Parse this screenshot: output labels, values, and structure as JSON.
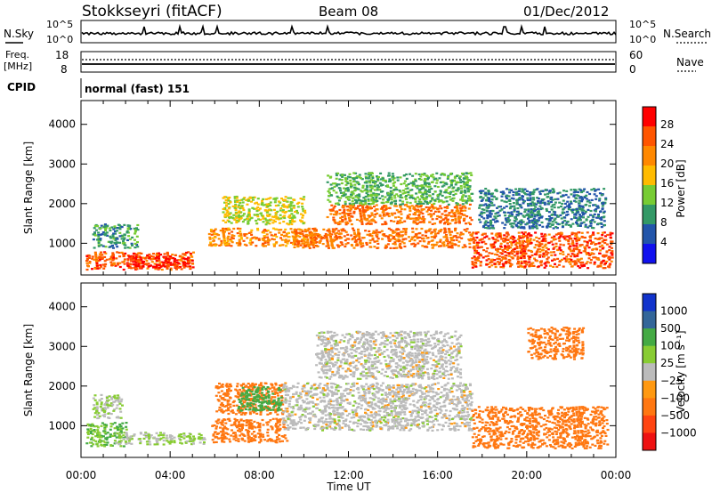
{
  "header": {
    "station": "Stokkseyri (fitACF)",
    "beam": "Beam 08",
    "date": "01/Dec/2012"
  },
  "summary_panels": {
    "nsky_label": "N.Sky",
    "nsky_ticks": [
      "10^5",
      "10^0"
    ],
    "nsearch_label": "N.Search",
    "nsearch_ticks": [
      "10^5",
      "10^0"
    ],
    "freq_label": "Freq.",
    "freq_unit": "[MHz]",
    "freq_ticks": [
      "18",
      "8"
    ],
    "nave_label": "Nave",
    "nave_ticks": [
      "60",
      "0"
    ],
    "cpid_label": "CPID",
    "cpid_value": "normal (fast) 151"
  },
  "power_colorbar": {
    "label": "Power [dB]",
    "ticks": [
      "28",
      "24",
      "20",
      "16",
      "12",
      "8",
      "4"
    ],
    "colors": [
      "#ff0000",
      "#ff5500",
      "#ff8800",
      "#ffbb00",
      "#77cc33",
      "#339966",
      "#2255aa",
      "#1111ee"
    ]
  },
  "velocity_colorbar": {
    "label": "Velocity [m s⁻¹]",
    "ticks": [
      "1000",
      "500",
      "100",
      "25",
      "−25",
      "−100",
      "−500",
      "−1000"
    ],
    "colors": [
      "#1133cc",
      "#336699",
      "#44aa44",
      "#88cc33",
      "#bbbbbb",
      "#ff9911",
      "#ff7711",
      "#ff4411",
      "#ee1111"
    ]
  },
  "chart_data": [
    {
      "type": "heatmap",
      "quantity": "power",
      "ylabel": "Slant Range [km]",
      "xlabel": "",
      "x_ticks": [
        "00:00",
        "04:00",
        "08:00",
        "12:00",
        "16:00",
        "20:00",
        "00:00"
      ],
      "y_ticks": [
        1000,
        2000,
        3000,
        4000
      ],
      "xlim_hours": [
        0,
        24
      ],
      "ylim": [
        200,
        4600
      ],
      "echo_regions": [
        {
          "t0": 0.2,
          "t1": 5.0,
          "r0": 350,
          "r1": 800,
          "level": 26
        },
        {
          "t0": 2.0,
          "t1": 4.8,
          "r0": 400,
          "r1": 700,
          "level": 30
        },
        {
          "t0": 0.5,
          "t1": 2.5,
          "r0": 900,
          "r1": 1500,
          "level": 10
        },
        {
          "t0": 5.7,
          "t1": 10.5,
          "r0": 950,
          "r1": 1400,
          "level": 22
        },
        {
          "t0": 6.3,
          "t1": 10.0,
          "r0": 1500,
          "r1": 2200,
          "level": 16
        },
        {
          "t0": 9.5,
          "t1": 17.5,
          "r0": 900,
          "r1": 1400,
          "level": 24
        },
        {
          "t0": 11.0,
          "t1": 17.5,
          "r0": 1500,
          "r1": 2000,
          "level": 24
        },
        {
          "t0": 11.0,
          "t1": 17.5,
          "r0": 2000,
          "r1": 2800,
          "level": 12
        },
        {
          "t0": 17.5,
          "t1": 23.8,
          "r0": 400,
          "r1": 1300,
          "level": 26
        },
        {
          "t0": 17.8,
          "t1": 23.5,
          "r0": 1400,
          "r1": 2400,
          "level": 8
        }
      ]
    },
    {
      "type": "heatmap",
      "quantity": "velocity",
      "ylabel": "Slant Range [km]",
      "xlabel": "Time UT",
      "x_ticks": [
        "00:00",
        "04:00",
        "08:00",
        "12:00",
        "16:00",
        "20:00",
        "00:00"
      ],
      "y_ticks": [
        1000,
        2000,
        3000,
        4000
      ],
      "xlim_hours": [
        0,
        24
      ],
      "ylim": [
        200,
        4600
      ],
      "echo_regions": [
        {
          "t0": 0.2,
          "t1": 2.0,
          "r0": 500,
          "r1": 1100,
          "level": 100
        },
        {
          "t0": 1.5,
          "t1": 5.5,
          "r0": 550,
          "r1": 850,
          "level": 25
        },
        {
          "t0": 0.5,
          "t1": 1.8,
          "r0": 1200,
          "r1": 1800,
          "level": 25
        },
        {
          "t0": 5.8,
          "t1": 9.2,
          "r0": 600,
          "r1": 1200,
          "level": -300
        },
        {
          "t0": 6.0,
          "t1": 9.0,
          "r0": 1300,
          "r1": 2100,
          "level": -150
        },
        {
          "t0": 7.0,
          "t1": 9.0,
          "r0": 1400,
          "r1": 2000,
          "level": 150
        },
        {
          "t0": 9.0,
          "t1": 17.5,
          "r0": 900,
          "r1": 2100,
          "level": 0
        },
        {
          "t0": 10.5,
          "t1": 17.0,
          "r0": 2200,
          "r1": 3400,
          "level": 0
        },
        {
          "t0": 17.5,
          "t1": 23.6,
          "r0": 450,
          "r1": 1500,
          "level": -400
        },
        {
          "t0": 20.0,
          "t1": 22.5,
          "r0": 2700,
          "r1": 3500,
          "level": -150
        }
      ]
    }
  ]
}
